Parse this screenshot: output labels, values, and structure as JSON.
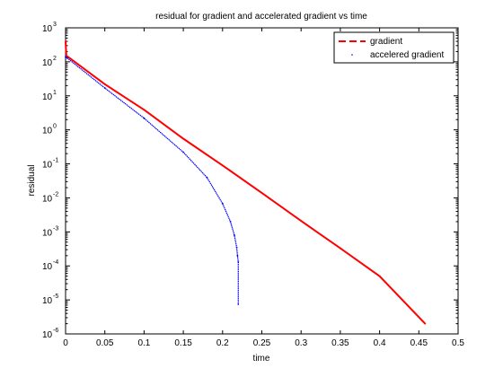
{
  "chart_data": {
    "type": "line",
    "title": "residual for gradient and accelerated gradient vs time",
    "xlabel": "time",
    "ylabel": "residual",
    "xlim": [
      0,
      0.5
    ],
    "ylim": [
      1e-06,
      1000
    ],
    "yscale": "log",
    "grid": false,
    "legend_position": "top-right",
    "x_ticks": [
      {
        "value": 0,
        "label": "0"
      },
      {
        "value": 0.05,
        "label": "0.05"
      },
      {
        "value": 0.1,
        "label": "0.1"
      },
      {
        "value": 0.15,
        "label": "0.15"
      },
      {
        "value": 0.2,
        "label": "0.2"
      },
      {
        "value": 0.25,
        "label": "0.25"
      },
      {
        "value": 0.3,
        "label": "0.3"
      },
      {
        "value": 0.35,
        "label": "0.35"
      },
      {
        "value": 0.4,
        "label": "0.4"
      },
      {
        "value": 0.45,
        "label": "0.45"
      },
      {
        "value": 0.5,
        "label": "0.5"
      }
    ],
    "y_ticks": [
      {
        "value": 1e-06,
        "base": "10",
        "exp": "-6"
      },
      {
        "value": 1e-05,
        "base": "10",
        "exp": "-5"
      },
      {
        "value": 0.0001,
        "base": "10",
        "exp": "-4"
      },
      {
        "value": 0.001,
        "base": "10",
        "exp": "-3"
      },
      {
        "value": 0.01,
        "base": "10",
        "exp": "-2"
      },
      {
        "value": 0.1,
        "base": "10",
        "exp": "-1"
      },
      {
        "value": 1,
        "base": "10",
        "exp": "0"
      },
      {
        "value": 10,
        "base": "10",
        "exp": "1"
      },
      {
        "value": 100,
        "base": "10",
        "exp": "2"
      },
      {
        "value": 1000,
        "base": "10",
        "exp": "3"
      }
    ],
    "series": [
      {
        "name": "gradient",
        "color": "#ff0000",
        "style": "dashed",
        "x": [
          0,
          0.001,
          0.005,
          0.05,
          0.1,
          0.15,
          0.2,
          0.25,
          0.3,
          0.35,
          0.4,
          0.458
        ],
        "y": [
          400,
          150,
          130,
          22,
          3.9,
          0.55,
          0.09,
          0.014,
          0.0021,
          0.00033,
          5e-05,
          2e-06
        ]
      },
      {
        "name": "accelered gradient",
        "color": "#0000ff",
        "style": "dotted",
        "x": [
          0,
          0.002,
          0.05,
          0.1,
          0.15,
          0.18,
          0.2,
          0.21,
          0.215,
          0.218,
          0.219,
          0.22,
          0.22
        ],
        "y": [
          140,
          130,
          17,
          2.2,
          0.22,
          0.04,
          0.0068,
          0.002,
          0.0008,
          0.00035,
          0.0002,
          0.00013,
          7.5e-06
        ]
      }
    ]
  }
}
